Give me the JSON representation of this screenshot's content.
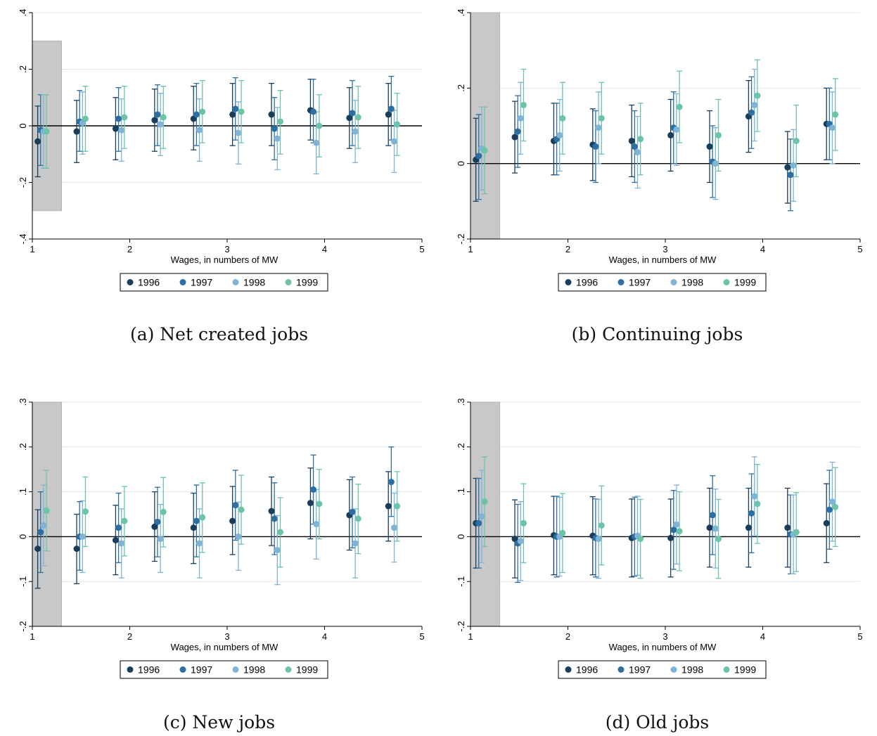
{
  "series_colors": [
    "#1a3d5a",
    "#2c6fa0",
    "#7fb4d8",
    "#6cc4a8"
  ],
  "chart_data": [
    {
      "id": "a",
      "type": "scatter",
      "caption": "(a)  Net created jobs",
      "xlabel": "Wages, in numbers of MW",
      "ylabel": "",
      "xlim": [
        1,
        5
      ],
      "ylim": [
        -0.4,
        0.4
      ],
      "x_ticks": [
        1,
        2,
        3,
        4,
        5
      ],
      "y_ticks": [
        -0.4,
        -0.2,
        0,
        0.2,
        0.4
      ],
      "y_tick_labels": [
        "-.4",
        "-.2",
        "0",
        ".2",
        ".4"
      ],
      "shaded_region": {
        "x": [
          1,
          1.3
        ],
        "y": [
          -0.3,
          0.3
        ]
      },
      "reference_line": 0,
      "grid": true,
      "legend": "bottom",
      "x": [
        1.1,
        1.5,
        1.9,
        2.3,
        2.7,
        3.1,
        3.5,
        3.9,
        4.3,
        4.7
      ],
      "series": [
        {
          "name": "1996",
          "values": [
            -0.055,
            -0.02,
            -0.01,
            0.02,
            0.025,
            0.04,
            0.04,
            0.055,
            0.028,
            0.04
          ],
          "lower": [
            -0.18,
            -0.13,
            -0.12,
            -0.09,
            -0.085,
            -0.07,
            -0.07,
            -0.05,
            -0.08,
            -0.07
          ],
          "upper": [
            0.07,
            0.09,
            0.1,
            0.13,
            0.14,
            0.15,
            0.15,
            0.165,
            0.135,
            0.15
          ]
        },
        {
          "name": "1997",
          "values": [
            -0.015,
            0.015,
            0.025,
            0.04,
            0.04,
            0.06,
            -0.01,
            0.05,
            0.045,
            0.06
          ],
          "lower": [
            -0.14,
            -0.09,
            -0.09,
            -0.07,
            -0.07,
            -0.05,
            -0.12,
            -0.06,
            -0.07,
            -0.05
          ],
          "upper": [
            0.11,
            0.125,
            0.135,
            0.145,
            0.15,
            0.17,
            0.1,
            0.165,
            0.16,
            0.175
          ]
        },
        {
          "name": "1998",
          "values": [
            -0.02,
            0.01,
            -0.015,
            0.005,
            -0.015,
            -0.025,
            -0.045,
            -0.06,
            -0.02,
            -0.055
          ],
          "lower": [
            -0.15,
            -0.1,
            -0.125,
            -0.105,
            -0.125,
            -0.135,
            -0.155,
            -0.17,
            -0.13,
            -0.165
          ],
          "upper": [
            0.11,
            0.12,
            0.095,
            0.115,
            0.095,
            0.085,
            0.065,
            0.05,
            0.09,
            0.055
          ]
        },
        {
          "name": "1999",
          "values": [
            -0.02,
            0.025,
            0.03,
            0.03,
            0.05,
            0.05,
            0.015,
            0.0,
            0.03,
            0.005
          ],
          "lower": [
            -0.15,
            -0.09,
            -0.08,
            -0.08,
            -0.06,
            -0.06,
            -0.1,
            -0.11,
            -0.08,
            -0.105
          ],
          "upper": [
            0.11,
            0.14,
            0.14,
            0.14,
            0.16,
            0.16,
            0.125,
            0.11,
            0.14,
            0.115
          ]
        }
      ]
    },
    {
      "id": "b",
      "type": "scatter",
      "caption": "(b)  Continuing jobs",
      "xlabel": "Wages, in numbers of MW",
      "ylabel": "",
      "xlim": [
        1,
        5
      ],
      "ylim": [
        -0.2,
        0.4
      ],
      "x_ticks": [
        1,
        2,
        3,
        4,
        5
      ],
      "y_ticks": [
        -0.2,
        0,
        0.2,
        0.4
      ],
      "y_tick_labels": [
        "-.2",
        "0",
        ".2",
        ".4"
      ],
      "shaded_region": {
        "x": [
          1,
          1.3
        ],
        "y": [
          -0.2,
          0.4
        ]
      },
      "reference_line": 0,
      "grid": true,
      "legend": "bottom",
      "x": [
        1.1,
        1.5,
        1.9,
        2.3,
        2.7,
        3.1,
        3.5,
        3.9,
        4.3,
        4.7
      ],
      "series": [
        {
          "name": "1996",
          "values": [
            0.01,
            0.07,
            0.06,
            0.05,
            0.06,
            0.075,
            0.045,
            0.125,
            -0.01,
            0.105
          ],
          "lower": [
            -0.1,
            -0.025,
            -0.03,
            -0.045,
            -0.035,
            -0.02,
            -0.05,
            0.03,
            -0.105,
            0.01
          ],
          "upper": [
            0.12,
            0.165,
            0.16,
            0.145,
            0.155,
            0.17,
            0.14,
            0.22,
            0.085,
            0.2
          ]
        },
        {
          "name": "1997",
          "values": [
            0.02,
            0.085,
            0.065,
            0.045,
            0.045,
            0.095,
            0.005,
            0.135,
            -0.03,
            0.105
          ],
          "lower": [
            -0.095,
            -0.01,
            -0.03,
            -0.05,
            -0.05,
            0.0,
            -0.09,
            0.04,
            -0.125,
            0.01
          ],
          "upper": [
            0.13,
            0.18,
            0.16,
            0.14,
            0.14,
            0.19,
            0.1,
            0.23,
            0.065,
            0.2
          ]
        },
        {
          "name": "1998",
          "values": [
            0.04,
            0.12,
            0.075,
            0.095,
            0.03,
            0.09,
            0.0,
            0.155,
            -0.005,
            0.095
          ],
          "lower": [
            -0.07,
            0.025,
            -0.02,
            0.0,
            -0.065,
            -0.005,
            -0.095,
            0.06,
            -0.1,
            0.0
          ],
          "upper": [
            0.15,
            0.215,
            0.17,
            0.19,
            0.125,
            0.185,
            0.095,
            0.25,
            0.09,
            0.19
          ]
        },
        {
          "name": "1999",
          "values": [
            0.035,
            0.155,
            0.12,
            0.12,
            0.065,
            0.15,
            0.075,
            0.18,
            0.06,
            0.13
          ],
          "lower": [
            -0.08,
            0.06,
            0.025,
            0.025,
            -0.03,
            0.055,
            -0.02,
            0.085,
            -0.035,
            0.035
          ],
          "upper": [
            0.15,
            0.25,
            0.215,
            0.215,
            0.16,
            0.245,
            0.17,
            0.275,
            0.155,
            0.225
          ]
        }
      ]
    },
    {
      "id": "c",
      "type": "scatter",
      "caption": "(c)  New jobs",
      "xlabel": "Wages, in numbers of MW",
      "ylabel": "",
      "xlim": [
        1,
        5
      ],
      "ylim": [
        -0.2,
        0.3
      ],
      "x_ticks": [
        1,
        2,
        3,
        4,
        5
      ],
      "y_ticks": [
        -0.2,
        -0.1,
        0,
        0.1,
        0.2,
        0.3
      ],
      "y_tick_labels": [
        "-.2",
        "-.1",
        "0",
        ".1",
        ".2",
        ".3"
      ],
      "shaded_region": {
        "x": [
          1,
          1.3
        ],
        "y": [
          -0.2,
          0.3
        ]
      },
      "reference_line": 0,
      "grid": true,
      "legend": "bottom",
      "x": [
        1.1,
        1.5,
        1.9,
        2.3,
        2.7,
        3.1,
        3.5,
        3.9,
        4.3,
        4.7
      ],
      "series": [
        {
          "name": "1996",
          "values": [
            -0.027,
            -0.027,
            -0.008,
            0.022,
            0.02,
            0.035,
            0.057,
            0.075,
            0.048,
            0.068
          ],
          "lower": [
            -0.115,
            -0.105,
            -0.085,
            -0.055,
            -0.06,
            -0.04,
            -0.02,
            -0.005,
            -0.03,
            -0.01
          ],
          "upper": [
            0.06,
            0.05,
            0.07,
            0.1,
            0.097,
            0.112,
            0.133,
            0.153,
            0.127,
            0.145
          ]
        },
        {
          "name": "1997",
          "values": [
            0.01,
            0.0,
            0.02,
            0.033,
            0.035,
            0.07,
            0.04,
            0.105,
            0.055,
            0.122
          ],
          "lower": [
            -0.08,
            -0.075,
            -0.058,
            -0.045,
            -0.045,
            -0.008,
            -0.04,
            0.028,
            -0.025,
            0.045
          ],
          "upper": [
            0.1,
            0.078,
            0.097,
            0.11,
            0.115,
            0.148,
            0.12,
            0.182,
            0.133,
            0.2
          ]
        },
        {
          "name": "1998",
          "values": [
            0.025,
            0.0,
            -0.015,
            -0.005,
            -0.015,
            0.0,
            -0.03,
            0.028,
            -0.015,
            0.02
          ],
          "lower": [
            -0.065,
            -0.08,
            -0.092,
            -0.08,
            -0.092,
            -0.075,
            -0.107,
            -0.05,
            -0.092,
            -0.057
          ],
          "upper": [
            0.115,
            0.08,
            0.062,
            0.072,
            0.062,
            0.077,
            0.047,
            0.105,
            0.062,
            0.097
          ]
        },
        {
          "name": "1999",
          "values": [
            0.058,
            0.056,
            0.035,
            0.055,
            0.043,
            0.06,
            0.01,
            0.073,
            0.04,
            0.068
          ],
          "lower": [
            -0.032,
            -0.022,
            -0.043,
            -0.023,
            -0.035,
            -0.017,
            -0.068,
            -0.005,
            -0.038,
            -0.01
          ],
          "upper": [
            0.148,
            0.133,
            0.112,
            0.132,
            0.12,
            0.137,
            0.087,
            0.15,
            0.117,
            0.145
          ]
        }
      ]
    },
    {
      "id": "d",
      "type": "scatter",
      "caption": "(d)  Old jobs",
      "xlabel": "Wages, in numbers of MW",
      "ylabel": "",
      "xlim": [
        1,
        5
      ],
      "ylim": [
        -0.2,
        0.3
      ],
      "x_ticks": [
        1,
        2,
        3,
        4,
        5
      ],
      "y_ticks": [
        -0.2,
        -0.1,
        0,
        0.1,
        0.2,
        0.3
      ],
      "y_tick_labels": [
        "-.2",
        "-.1",
        "0",
        ".1",
        ".2",
        ".3"
      ],
      "shaded_region": {
        "x": [
          1,
          1.3
        ],
        "y": [
          -0.2,
          0.3
        ]
      },
      "reference_line": 0,
      "grid": true,
      "legend": "bottom",
      "x": [
        1.1,
        1.5,
        1.9,
        2.3,
        2.7,
        3.1,
        3.5,
        3.9,
        4.3,
        4.7
      ],
      "series": [
        {
          "name": "1996",
          "values": [
            0.03,
            -0.005,
            0.003,
            0.002,
            -0.003,
            -0.003,
            0.02,
            0.02,
            0.02,
            0.03
          ],
          "lower": [
            -0.07,
            -0.092,
            -0.085,
            -0.085,
            -0.09,
            -0.09,
            -0.068,
            -0.068,
            -0.068,
            -0.058
          ],
          "upper": [
            0.13,
            0.082,
            0.09,
            0.089,
            0.084,
            0.084,
            0.108,
            0.108,
            0.108,
            0.118
          ]
        },
        {
          "name": "1997",
          "values": [
            0.03,
            -0.015,
            0.0,
            -0.003,
            0.0,
            0.015,
            0.048,
            0.052,
            0.005,
            0.06
          ],
          "lower": [
            -0.07,
            -0.102,
            -0.09,
            -0.09,
            -0.088,
            -0.073,
            -0.04,
            -0.036,
            -0.083,
            -0.028
          ],
          "upper": [
            0.13,
            0.072,
            0.09,
            0.084,
            0.088,
            0.103,
            0.136,
            0.14,
            0.093,
            0.148
          ]
        },
        {
          "name": "1998",
          "values": [
            0.045,
            -0.01,
            0.0,
            -0.005,
            0.002,
            0.027,
            0.018,
            0.09,
            0.005,
            0.078
          ],
          "lower": [
            -0.058,
            -0.098,
            -0.088,
            -0.093,
            -0.086,
            -0.061,
            -0.07,
            0.002,
            -0.083,
            -0.01
          ],
          "upper": [
            0.148,
            0.078,
            0.088,
            0.083,
            0.09,
            0.115,
            0.106,
            0.178,
            0.093,
            0.166
          ]
        },
        {
          "name": "1999",
          "values": [
            0.078,
            0.03,
            0.008,
            0.025,
            -0.005,
            0.012,
            -0.005,
            0.073,
            0.01,
            0.066
          ],
          "lower": [
            -0.022,
            -0.058,
            -0.08,
            -0.063,
            -0.093,
            -0.076,
            -0.093,
            -0.015,
            -0.078,
            -0.022
          ],
          "upper": [
            0.178,
            0.118,
            0.096,
            0.113,
            0.083,
            0.1,
            0.083,
            0.161,
            0.098,
            0.154
          ]
        }
      ]
    }
  ]
}
